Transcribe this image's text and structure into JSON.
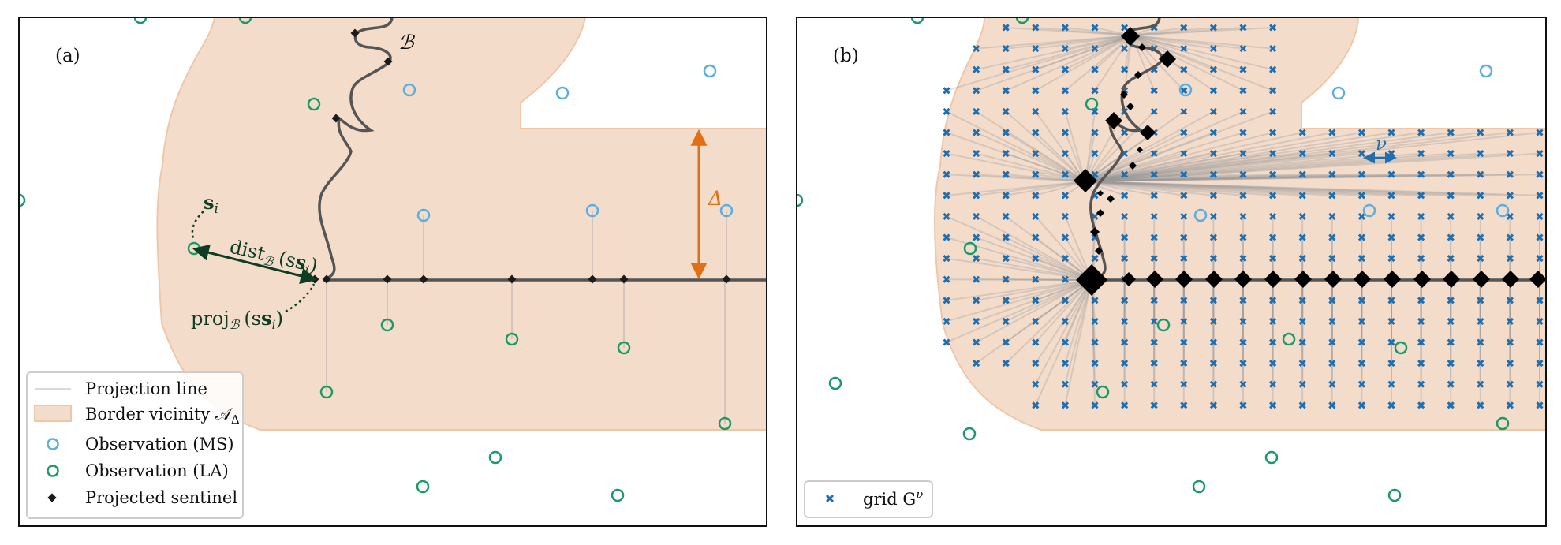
{
  "panel_a": {
    "label": "(a)",
    "border_label": "ℬ",
    "delta_label": "Δ",
    "si_label": "s",
    "si_sub": "i",
    "dist_label": "dist",
    "dist_sub": "ℬ",
    "dist_arg": "(s",
    "dist_arg_sub": "i",
    "dist_arg_close": ")",
    "proj_label": "proj",
    "proj_sub": "ℬ",
    "proj_arg": "(s",
    "proj_arg_sub": "i",
    "proj_arg_close": ")",
    "legend": {
      "projection_line": "Projection line",
      "border_vicinity": "Border vicinity 𝒜",
      "border_vicinity_sub": "Δ",
      "obs_ms": "Observation (MS)",
      "obs_la": "Observation (LA)",
      "sentinel": "Projected sentinel"
    }
  },
  "panel_b": {
    "label": "(b)",
    "nu_label": "ν",
    "legend": {
      "grid": "grid G",
      "grid_sup": "ν"
    }
  },
  "colors": {
    "vicinity_fill": "#f4dccb",
    "vicinity_edge": "#f0c6a8",
    "ms": "#5aaee2",
    "la": "#1a9a68",
    "border": "#555555",
    "delta": "#e06f16",
    "grid": "#1f6fb0",
    "dark_green": "#0e3d24"
  }
}
